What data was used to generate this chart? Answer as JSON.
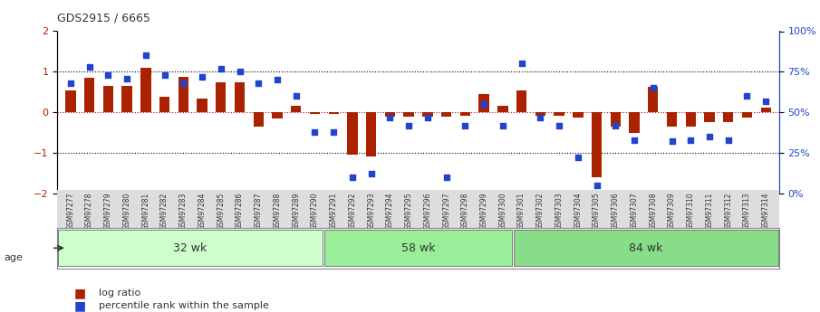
{
  "title": "GDS2915 / 6665",
  "samples": [
    "GSM97277",
    "GSM97278",
    "GSM97279",
    "GSM97280",
    "GSM97281",
    "GSM97282",
    "GSM97283",
    "GSM97284",
    "GSM97285",
    "GSM97286",
    "GSM97287",
    "GSM97288",
    "GSM97289",
    "GSM97290",
    "GSM97291",
    "GSM97292",
    "GSM97293",
    "GSM97294",
    "GSM97295",
    "GSM97296",
    "GSM97297",
    "GSM97298",
    "GSM97299",
    "GSM97300",
    "GSM97301",
    "GSM97302",
    "GSM97303",
    "GSM97304",
    "GSM97305",
    "GSM97306",
    "GSM97307",
    "GSM97308",
    "GSM97309",
    "GSM97310",
    "GSM97311",
    "GSM97312",
    "GSM97313",
    "GSM97314"
  ],
  "log_ratio": [
    0.55,
    0.85,
    0.65,
    0.65,
    1.1,
    0.38,
    0.88,
    0.35,
    0.75,
    0.73,
    -0.35,
    -0.15,
    0.16,
    -0.05,
    -0.05,
    -1.05,
    -1.08,
    -0.1,
    -0.1,
    -0.1,
    -0.1,
    -0.08,
    0.46,
    0.15,
    0.55,
    -0.08,
    -0.08,
    -0.12,
    -1.6,
    -0.35,
    -0.5,
    0.62,
    -0.35,
    -0.35,
    -0.25,
    -0.25,
    -0.12,
    0.12
  ],
  "percentile": [
    68,
    78,
    73,
    71,
    85,
    73,
    68,
    72,
    77,
    75,
    68,
    70,
    60,
    38,
    38,
    10,
    12,
    47,
    42,
    47,
    10,
    42,
    55,
    42,
    80,
    47,
    42,
    22,
    5,
    42,
    33,
    65,
    32,
    33,
    35,
    33,
    60,
    57
  ],
  "groups": [
    {
      "label": "32 wk",
      "start": 0,
      "end": 14,
      "color": "#ccffcc"
    },
    {
      "label": "58 wk",
      "start": 14,
      "end": 24,
      "color": "#99ee99"
    },
    {
      "label": "84 wk",
      "start": 24,
      "end": 38,
      "color": "#88dd88"
    }
  ],
  "ylim_left": [
    -2,
    2
  ],
  "ylim_right": [
    0,
    100
  ],
  "bar_color": "#aa2200",
  "dot_color": "#2244cc",
  "hline_color": "#cc0000",
  "dotted_color": "#000000",
  "bg_color": "#ffffff",
  "age_label": "age",
  "left_yticks": [
    -2,
    -1,
    0,
    1,
    2
  ],
  "right_yticks": [
    0,
    25,
    50,
    75,
    100
  ],
  "right_yticklabels": [
    "0%",
    "25%",
    "50%",
    "75%",
    "100%"
  ]
}
